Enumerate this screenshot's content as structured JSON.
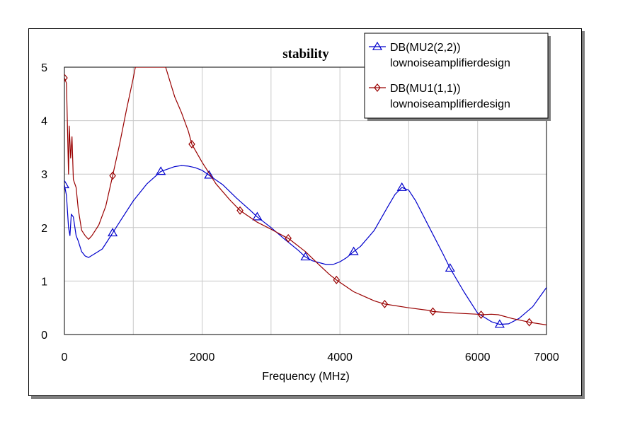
{
  "chart_data": {
    "type": "line",
    "title": "stability",
    "xlabel": "Frequency (MHz)",
    "ylabel": "",
    "xlim": [
      0,
      7000
    ],
    "ylim": [
      0,
      5
    ],
    "x_ticks": [
      "0",
      "2000",
      "4000",
      "6000",
      "7000"
    ],
    "y_ticks": [
      "0",
      "1",
      "2",
      "3",
      "4",
      "5"
    ],
    "grid": true,
    "legend_position": "top-right",
    "series": [
      {
        "name": "DB(MU2(2,2))",
        "source": "lownoiseamplifierdesign",
        "color": "#0000cc",
        "marker": "triangle",
        "points": [
          [
            0,
            2.8
          ],
          [
            30,
            2.6
          ],
          [
            60,
            2.0
          ],
          [
            80,
            1.85
          ],
          [
            100,
            2.25
          ],
          [
            130,
            2.2
          ],
          [
            170,
            1.85
          ],
          [
            200,
            1.75
          ],
          [
            250,
            1.55
          ],
          [
            300,
            1.47
          ],
          [
            350,
            1.44
          ],
          [
            400,
            1.48
          ],
          [
            450,
            1.52
          ],
          [
            500,
            1.56
          ],
          [
            550,
            1.6
          ],
          [
            600,
            1.7
          ],
          [
            700,
            1.9
          ],
          [
            800,
            2.1
          ],
          [
            1000,
            2.5
          ],
          [
            1200,
            2.82
          ],
          [
            1400,
            3.05
          ],
          [
            1600,
            3.14
          ],
          [
            1700,
            3.16
          ],
          [
            1800,
            3.15
          ],
          [
            1900,
            3.12
          ],
          [
            2000,
            3.07
          ],
          [
            2100,
            2.98
          ],
          [
            2300,
            2.8
          ],
          [
            2500,
            2.55
          ],
          [
            2700,
            2.32
          ],
          [
            2800,
            2.2
          ],
          [
            3000,
            2.0
          ],
          [
            3200,
            1.78
          ],
          [
            3400,
            1.57
          ],
          [
            3500,
            1.45
          ],
          [
            3600,
            1.38
          ],
          [
            3800,
            1.31
          ],
          [
            3900,
            1.31
          ],
          [
            4000,
            1.36
          ],
          [
            4100,
            1.44
          ],
          [
            4200,
            1.55
          ],
          [
            4300,
            1.65
          ],
          [
            4500,
            1.95
          ],
          [
            4700,
            2.4
          ],
          [
            4800,
            2.62
          ],
          [
            4900,
            2.75
          ],
          [
            5000,
            2.7
          ],
          [
            5100,
            2.5
          ],
          [
            5300,
            2.0
          ],
          [
            5500,
            1.5
          ],
          [
            5600,
            1.24
          ],
          [
            5800,
            0.8
          ],
          [
            6000,
            0.4
          ],
          [
            6200,
            0.24
          ],
          [
            6320,
            0.19
          ],
          [
            6450,
            0.2
          ],
          [
            6600,
            0.3
          ],
          [
            6800,
            0.52
          ],
          [
            7000,
            0.88
          ]
        ],
        "marker_x": [
          0,
          700,
          1400,
          2100,
          2800,
          3500,
          4200,
          4900,
          5600,
          6320
        ]
      },
      {
        "name": "DB(MU1(1,1))",
        "source": "lownoiseamplifierdesign",
        "color": "#990000",
        "marker": "diamond",
        "points": [
          [
            0,
            4.8
          ],
          [
            30,
            4.7
          ],
          [
            60,
            3.0
          ],
          [
            70,
            3.9
          ],
          [
            90,
            3.3
          ],
          [
            110,
            3.7
          ],
          [
            130,
            2.9
          ],
          [
            170,
            2.75
          ],
          [
            200,
            2.35
          ],
          [
            250,
            1.95
          ],
          [
            300,
            1.85
          ],
          [
            350,
            1.78
          ],
          [
            400,
            1.85
          ],
          [
            450,
            1.95
          ],
          [
            500,
            2.05
          ],
          [
            600,
            2.4
          ],
          [
            700,
            2.97
          ],
          [
            800,
            3.55
          ],
          [
            900,
            4.2
          ],
          [
            1000,
            4.8
          ],
          [
            1030,
            5.0
          ],
          [
            1470,
            5.0
          ],
          [
            1600,
            4.45
          ],
          [
            1700,
            4.15
          ],
          [
            1800,
            3.8
          ],
          [
            1850,
            3.56
          ],
          [
            2000,
            3.22
          ],
          [
            2200,
            2.82
          ],
          [
            2400,
            2.52
          ],
          [
            2550,
            2.32
          ],
          [
            2800,
            2.1
          ],
          [
            3000,
            1.97
          ],
          [
            3200,
            1.83
          ],
          [
            3250,
            1.8
          ],
          [
            3500,
            1.55
          ],
          [
            3700,
            1.3
          ],
          [
            3850,
            1.12
          ],
          [
            3950,
            1.02
          ],
          [
            4200,
            0.8
          ],
          [
            4500,
            0.63
          ],
          [
            4650,
            0.57
          ],
          [
            5000,
            0.5
          ],
          [
            5300,
            0.45
          ],
          [
            5350,
            0.43
          ],
          [
            5700,
            0.4
          ],
          [
            6000,
            0.38
          ],
          [
            6050,
            0.37
          ],
          [
            6200,
            0.38
          ],
          [
            6300,
            0.37
          ],
          [
            6500,
            0.3
          ],
          [
            6750,
            0.23
          ],
          [
            7000,
            0.18
          ]
        ],
        "marker_x": [
          0,
          700,
          1850,
          2550,
          3250,
          3950,
          4650,
          5350,
          6050,
          6750
        ]
      }
    ]
  }
}
